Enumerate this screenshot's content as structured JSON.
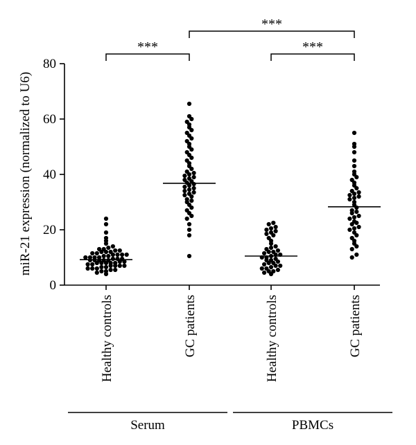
{
  "chart_data": {
    "type": "scatter",
    "title": "",
    "xlabel": "",
    "ylabel": "miR-21 expression (normalized to U6)",
    "ylim": [
      0,
      80
    ],
    "yticks": [
      0,
      20,
      40,
      60,
      80
    ],
    "grid": false,
    "categories": [
      "Healthy controls",
      "GC patients",
      "Healthy controls",
      "GC patients"
    ],
    "groups": [
      {
        "label": "Serum",
        "categories": [
          0,
          1
        ]
      },
      {
        "label": "PBMCs",
        "categories": [
          2,
          3
        ]
      }
    ],
    "significance": [
      {
        "from": 0,
        "to": 1,
        "label": "***"
      },
      {
        "from": 2,
        "to": 3,
        "label": "***"
      },
      {
        "from": 1,
        "to": 3,
        "label": "***"
      }
    ],
    "series": [
      {
        "group": "Serum",
        "category": "Healthy controls",
        "mean": 9.2,
        "values": [
          4,
          4.5,
          5,
          5,
          5.5,
          5.5,
          6,
          6,
          6,
          6.5,
          6.5,
          7,
          7,
          7,
          7,
          7.5,
          7.5,
          8,
          8,
          8,
          8,
          8,
          8.5,
          8.5,
          9,
          9,
          9,
          9,
          9,
          9.5,
          9.5,
          9.5,
          10,
          10,
          10,
          10,
          10.5,
          10.5,
          11,
          11,
          11,
          11,
          11.5,
          11.5,
          12,
          12,
          12,
          12.5,
          12.5,
          13,
          13,
          13.5,
          14,
          15,
          16,
          17,
          19,
          22,
          24
        ]
      },
      {
        "group": "Serum",
        "category": "GC patients",
        "mean": 36.8,
        "values": [
          10.5,
          18,
          20,
          22,
          24,
          25,
          26,
          27,
          28,
          29,
          30,
          30.5,
          31,
          32,
          32.5,
          33,
          33.5,
          34,
          34.5,
          35,
          35.5,
          36,
          36.5,
          37,
          37.5,
          38,
          38.5,
          39,
          39.5,
          40,
          40.5,
          41,
          42,
          43,
          44,
          45,
          46,
          47,
          48,
          49,
          50,
          51,
          52,
          53,
          54,
          55,
          56,
          57,
          58,
          59,
          60,
          61,
          65.5
        ]
      },
      {
        "group": "PBMCs",
        "category": "Healthy controls",
        "mean": 10.5,
        "values": [
          4,
          4.5,
          5,
          5,
          5.5,
          6,
          6,
          6.5,
          7,
          7,
          7.5,
          8,
          8,
          8.5,
          9,
          9,
          9.5,
          10,
          10,
          10.5,
          11,
          11,
          11.5,
          12,
          12,
          12.5,
          13,
          13.5,
          14,
          15,
          16,
          17,
          18,
          18.5,
          19,
          19.5,
          20,
          20.5,
          21,
          22,
          22.5
        ]
      },
      {
        "group": "PBMCs",
        "category": "GC patients",
        "mean": 28.3,
        "values": [
          10,
          11,
          13,
          14,
          15,
          16,
          17,
          18,
          19,
          20,
          20.5,
          21,
          22,
          22.5,
          23,
          24,
          24.5,
          25,
          26,
          26.5,
          27,
          28,
          29,
          30,
          31,
          31.5,
          32,
          32.5,
          33,
          33.5,
          34,
          35,
          36,
          37,
          38,
          39,
          40,
          41,
          43,
          45,
          48,
          50,
          51,
          55
        ]
      }
    ]
  }
}
